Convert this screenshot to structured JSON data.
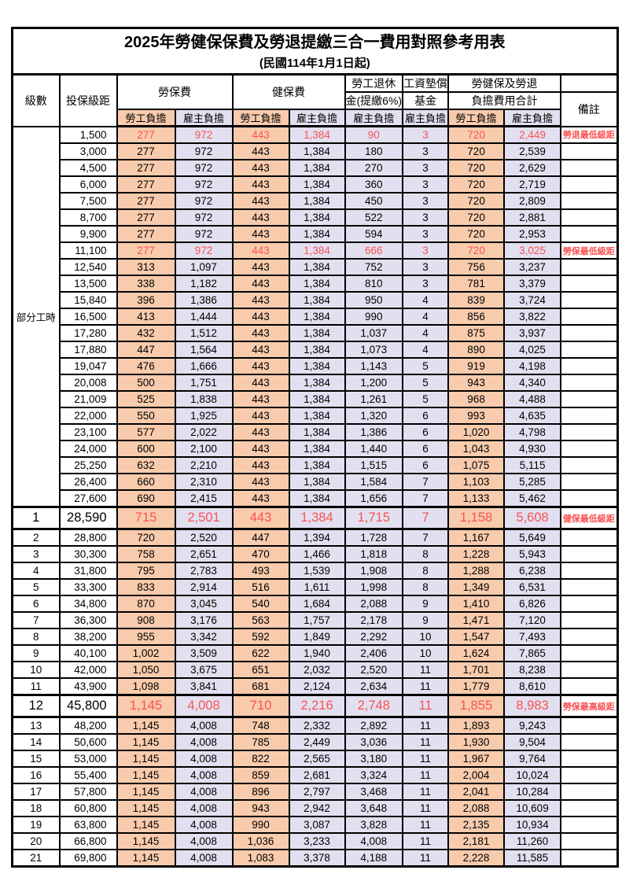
{
  "title": "2025年勞健保保費及勞退提繳三合一費用對照參考用表",
  "subtitle": "(民國114年1月1日起)",
  "colors": {
    "employee_bg": "#F8CBAD",
    "employer_bg": "#E2E0F0",
    "highlight_text": "#FA5252",
    "border": "#000000"
  },
  "header": {
    "col_level": "級數",
    "col_salary": "投保級距",
    "group_labor": "勞保費",
    "group_health": "健保費",
    "group_pension_l1": "勞工退休",
    "group_pension_l2": "金(提繳6%)",
    "group_wage_fund_l1": "工資墊償",
    "group_wage_fund_l2": "基金",
    "group_total_l1": "勞健保及勞退",
    "group_total_l2": "負擔費用合計",
    "col_remark": "備註",
    "sub_employee": "勞工負擔",
    "sub_employer": "雇主負擔"
  },
  "table": {
    "part_time_label": "部分工時",
    "part_time_rowspan": 23,
    "value_col_styles": [
      "employee",
      "employer",
      "employee",
      "employer",
      "employer",
      "employer",
      "employee",
      "employer"
    ],
    "rows": [
      {
        "level": "",
        "salary": "1,500",
        "values": [
          "277",
          "972",
          "443",
          "1,384",
          "90",
          "3",
          "720",
          "2,449"
        ],
        "remark": "勞退最低級距",
        "red": true,
        "big": false
      },
      {
        "level": "",
        "salary": "3,000",
        "values": [
          "277",
          "972",
          "443",
          "1,384",
          "180",
          "3",
          "720",
          "2,539"
        ],
        "remark": "",
        "red": false,
        "big": false
      },
      {
        "level": "",
        "salary": "4,500",
        "values": [
          "277",
          "972",
          "443",
          "1,384",
          "270",
          "3",
          "720",
          "2,629"
        ],
        "remark": "",
        "red": false,
        "big": false
      },
      {
        "level": "",
        "salary": "6,000",
        "values": [
          "277",
          "972",
          "443",
          "1,384",
          "360",
          "3",
          "720",
          "2,719"
        ],
        "remark": "",
        "red": false,
        "big": false
      },
      {
        "level": "",
        "salary": "7,500",
        "values": [
          "277",
          "972",
          "443",
          "1,384",
          "450",
          "3",
          "720",
          "2,809"
        ],
        "remark": "",
        "red": false,
        "big": false
      },
      {
        "level": "",
        "salary": "8,700",
        "values": [
          "277",
          "972",
          "443",
          "1,384",
          "522",
          "3",
          "720",
          "2,881"
        ],
        "remark": "",
        "red": false,
        "big": false
      },
      {
        "level": "",
        "salary": "9,900",
        "values": [
          "277",
          "972",
          "443",
          "1,384",
          "594",
          "3",
          "720",
          "2,953"
        ],
        "remark": "",
        "red": false,
        "big": false
      },
      {
        "level": "",
        "salary": "11,100",
        "values": [
          "277",
          "972",
          "443",
          "1,384",
          "666",
          "3",
          "720",
          "3,025"
        ],
        "remark": "勞保最低級距",
        "red": true,
        "big": false
      },
      {
        "level": "",
        "salary": "12,540",
        "values": [
          "313",
          "1,097",
          "443",
          "1,384",
          "752",
          "3",
          "756",
          "3,237"
        ],
        "remark": "",
        "red": false,
        "big": false
      },
      {
        "level": "",
        "salary": "13,500",
        "values": [
          "338",
          "1,182",
          "443",
          "1,384",
          "810",
          "3",
          "781",
          "3,379"
        ],
        "remark": "",
        "red": false,
        "big": false
      },
      {
        "level": "",
        "salary": "15,840",
        "values": [
          "396",
          "1,386",
          "443",
          "1,384",
          "950",
          "4",
          "839",
          "3,724"
        ],
        "remark": "",
        "red": false,
        "big": false
      },
      {
        "level": "",
        "salary": "16,500",
        "values": [
          "413",
          "1,444",
          "443",
          "1,384",
          "990",
          "4",
          "856",
          "3,822"
        ],
        "remark": "",
        "red": false,
        "big": false
      },
      {
        "level": "",
        "salary": "17,280",
        "values": [
          "432",
          "1,512",
          "443",
          "1,384",
          "1,037",
          "4",
          "875",
          "3,937"
        ],
        "remark": "",
        "red": false,
        "big": false
      },
      {
        "level": "",
        "salary": "17,880",
        "values": [
          "447",
          "1,564",
          "443",
          "1,384",
          "1,073",
          "4",
          "890",
          "4,025"
        ],
        "remark": "",
        "red": false,
        "big": false
      },
      {
        "level": "",
        "salary": "19,047",
        "values": [
          "476",
          "1,666",
          "443",
          "1,384",
          "1,143",
          "5",
          "919",
          "4,198"
        ],
        "remark": "",
        "red": false,
        "big": false
      },
      {
        "level": "",
        "salary": "20,008",
        "values": [
          "500",
          "1,751",
          "443",
          "1,384",
          "1,200",
          "5",
          "943",
          "4,340"
        ],
        "remark": "",
        "red": false,
        "big": false
      },
      {
        "level": "",
        "salary": "21,009",
        "values": [
          "525",
          "1,838",
          "443",
          "1,384",
          "1,261",
          "5",
          "968",
          "4,488"
        ],
        "remark": "",
        "red": false,
        "big": false
      },
      {
        "level": "",
        "salary": "22,000",
        "values": [
          "550",
          "1,925",
          "443",
          "1,384",
          "1,320",
          "6",
          "993",
          "4,635"
        ],
        "remark": "",
        "red": false,
        "big": false
      },
      {
        "level": "",
        "salary": "23,100",
        "values": [
          "577",
          "2,022",
          "443",
          "1,384",
          "1,386",
          "6",
          "1,020",
          "4,798"
        ],
        "remark": "",
        "red": false,
        "big": false
      },
      {
        "level": "",
        "salary": "24,000",
        "values": [
          "600",
          "2,100",
          "443",
          "1,384",
          "1,440",
          "6",
          "1,043",
          "4,930"
        ],
        "remark": "",
        "red": false,
        "big": false
      },
      {
        "level": "",
        "salary": "25,250",
        "values": [
          "632",
          "2,210",
          "443",
          "1,384",
          "1,515",
          "6",
          "1,075",
          "5,115"
        ],
        "remark": "",
        "red": false,
        "big": false
      },
      {
        "level": "",
        "salary": "26,400",
        "values": [
          "660",
          "2,310",
          "443",
          "1,384",
          "1,584",
          "7",
          "1,103",
          "5,285"
        ],
        "remark": "",
        "red": false,
        "big": false
      },
      {
        "level": "",
        "salary": "27,600",
        "values": [
          "690",
          "2,415",
          "443",
          "1,384",
          "1,656",
          "7",
          "1,133",
          "5,462"
        ],
        "remark": "",
        "red": false,
        "big": false
      },
      {
        "level": "1",
        "salary": "28,590",
        "values": [
          "715",
          "2,501",
          "443",
          "1,384",
          "1,715",
          "7",
          "1,158",
          "5,608"
        ],
        "remark": "健保最低級距",
        "red": true,
        "big": true
      },
      {
        "level": "2",
        "salary": "28,800",
        "values": [
          "720",
          "2,520",
          "447",
          "1,394",
          "1,728",
          "7",
          "1,167",
          "5,649"
        ],
        "remark": "",
        "red": false,
        "big": false
      },
      {
        "level": "3",
        "salary": "30,300",
        "values": [
          "758",
          "2,651",
          "470",
          "1,466",
          "1,818",
          "8",
          "1,228",
          "5,943"
        ],
        "remark": "",
        "red": false,
        "big": false
      },
      {
        "level": "4",
        "salary": "31,800",
        "values": [
          "795",
          "2,783",
          "493",
          "1,539",
          "1,908",
          "8",
          "1,288",
          "6,238"
        ],
        "remark": "",
        "red": false,
        "big": false
      },
      {
        "level": "5",
        "salary": "33,300",
        "values": [
          "833",
          "2,914",
          "516",
          "1,611",
          "1,998",
          "8",
          "1,349",
          "6,531"
        ],
        "remark": "",
        "red": false,
        "big": false
      },
      {
        "level": "6",
        "salary": "34,800",
        "values": [
          "870",
          "3,045",
          "540",
          "1,684",
          "2,088",
          "9",
          "1,410",
          "6,826"
        ],
        "remark": "",
        "red": false,
        "big": false
      },
      {
        "level": "7",
        "salary": "36,300",
        "values": [
          "908",
          "3,176",
          "563",
          "1,757",
          "2,178",
          "9",
          "1,471",
          "7,120"
        ],
        "remark": "",
        "red": false,
        "big": false
      },
      {
        "level": "8",
        "salary": "38,200",
        "values": [
          "955",
          "3,342",
          "592",
          "1,849",
          "2,292",
          "10",
          "1,547",
          "7,493"
        ],
        "remark": "",
        "red": false,
        "big": false
      },
      {
        "level": "9",
        "salary": "40,100",
        "values": [
          "1,002",
          "3,509",
          "622",
          "1,940",
          "2,406",
          "10",
          "1,624",
          "7,865"
        ],
        "remark": "",
        "red": false,
        "big": false
      },
      {
        "level": "10",
        "salary": "42,000",
        "values": [
          "1,050",
          "3,675",
          "651",
          "2,032",
          "2,520",
          "11",
          "1,701",
          "8,238"
        ],
        "remark": "",
        "red": false,
        "big": false
      },
      {
        "level": "11",
        "salary": "43,900",
        "values": [
          "1,098",
          "3,841",
          "681",
          "2,124",
          "2,634",
          "11",
          "1,779",
          "8,610"
        ],
        "remark": "",
        "red": false,
        "big": false
      },
      {
        "level": "12",
        "salary": "45,800",
        "values": [
          "1,145",
          "4,008",
          "710",
          "2,216",
          "2,748",
          "11",
          "1,855",
          "8,983"
        ],
        "remark": "勞保最高級距",
        "red": true,
        "big": true
      },
      {
        "level": "13",
        "salary": "48,200",
        "values": [
          "1,145",
          "4,008",
          "748",
          "2,332",
          "2,892",
          "11",
          "1,893",
          "9,243"
        ],
        "remark": "",
        "red": false,
        "big": false
      },
      {
        "level": "14",
        "salary": "50,600",
        "values": [
          "1,145",
          "4,008",
          "785",
          "2,449",
          "3,036",
          "11",
          "1,930",
          "9,504"
        ],
        "remark": "",
        "red": false,
        "big": false
      },
      {
        "level": "15",
        "salary": "53,000",
        "values": [
          "1,145",
          "4,008",
          "822",
          "2,565",
          "3,180",
          "11",
          "1,967",
          "9,764"
        ],
        "remark": "",
        "red": false,
        "big": false
      },
      {
        "level": "16",
        "salary": "55,400",
        "values": [
          "1,145",
          "4,008",
          "859",
          "2,681",
          "3,324",
          "11",
          "2,004",
          "10,024"
        ],
        "remark": "",
        "red": false,
        "big": false
      },
      {
        "level": "17",
        "salary": "57,800",
        "values": [
          "1,145",
          "4,008",
          "896",
          "2,797",
          "3,468",
          "11",
          "2,041",
          "10,284"
        ],
        "remark": "",
        "red": false,
        "big": false
      },
      {
        "level": "18",
        "salary": "60,800",
        "values": [
          "1,145",
          "4,008",
          "943",
          "2,942",
          "3,648",
          "11",
          "2,088",
          "10,609"
        ],
        "remark": "",
        "red": false,
        "big": false
      },
      {
        "level": "19",
        "salary": "63,800",
        "values": [
          "1,145",
          "4,008",
          "990",
          "3,087",
          "3,828",
          "11",
          "2,135",
          "10,934"
        ],
        "remark": "",
        "red": false,
        "big": false
      },
      {
        "level": "20",
        "salary": "66,800",
        "values": [
          "1,145",
          "4,008",
          "1,036",
          "3,233",
          "4,008",
          "11",
          "2,181",
          "11,260"
        ],
        "remark": "",
        "red": false,
        "big": false
      },
      {
        "level": "21",
        "salary": "69,800",
        "values": [
          "1,145",
          "4,008",
          "1,083",
          "3,378",
          "4,188",
          "11",
          "2,228",
          "11,585"
        ],
        "remark": "",
        "red": false,
        "big": false
      }
    ]
  }
}
